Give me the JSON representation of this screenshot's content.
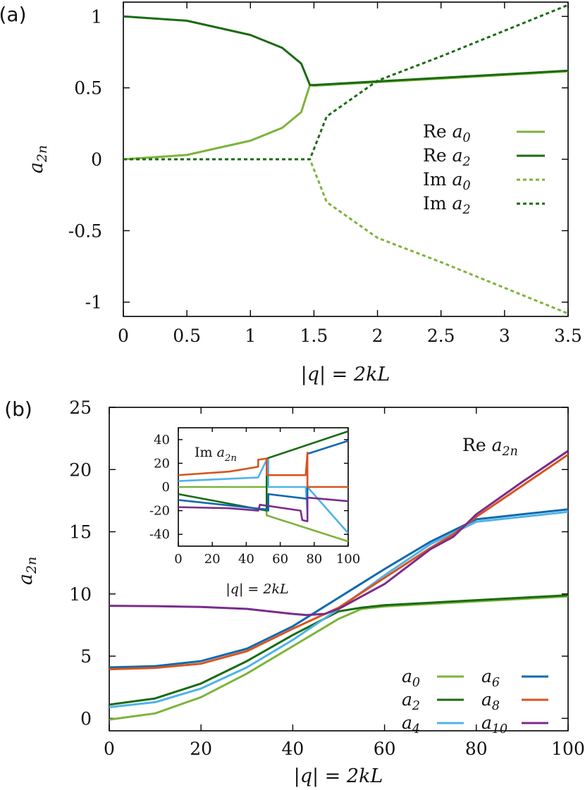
{
  "chart_data": [
    {
      "type": "line",
      "panel_label": "(a)",
      "xlabel": "|q| = 2kL",
      "ylabel": "a_2n",
      "xlim": [
        0,
        3.5
      ],
      "ylim": [
        -1.1,
        1.1
      ],
      "xticks": [
        0,
        0.5,
        1,
        1.5,
        2,
        2.5,
        3,
        3.5
      ],
      "xtick_labels": [
        "0",
        "0.5",
        "1",
        "1.5",
        "2",
        "2.5",
        "3",
        "3.5"
      ],
      "yticks": [
        1,
        0.5,
        0,
        -0.5,
        -1
      ],
      "ytick_labels": [
        "1",
        "0.5",
        "0",
        "-0.5",
        "-1"
      ],
      "legend_position": "right",
      "series": [
        {
          "name": "Re a0",
          "style": "solid",
          "color": "#7db33a",
          "x": [
            0,
            0.5,
            1.0,
            1.25,
            1.4,
            1.468,
            1.5,
            2.0,
            2.5,
            3.0,
            3.5
          ],
          "y": [
            0,
            0.03,
            0.13,
            0.22,
            0.33,
            0.52,
            0.515,
            0.54,
            0.565,
            0.59,
            0.615
          ]
        },
        {
          "name": "Re a2",
          "style": "solid",
          "color": "#1a6b12",
          "x": [
            0,
            0.5,
            1.0,
            1.25,
            1.4,
            1.468,
            1.5,
            2.0,
            2.5,
            3.0,
            3.5
          ],
          "y": [
            1.0,
            0.97,
            0.87,
            0.78,
            0.67,
            0.52,
            0.52,
            0.545,
            0.57,
            0.595,
            0.62
          ]
        },
        {
          "name": "Im a0",
          "style": "dashed",
          "color": "#7db33a",
          "x": [
            0,
            1.0,
            1.468,
            1.6,
            2.0,
            2.5,
            3.0,
            3.5
          ],
          "y": [
            0,
            0,
            0,
            -0.3,
            -0.55,
            -0.72,
            -0.9,
            -1.08
          ]
        },
        {
          "name": "Im a2",
          "style": "dashed",
          "color": "#1a6b12",
          "x": [
            0,
            1.0,
            1.468,
            1.6,
            2.0,
            2.5,
            3.0,
            3.5
          ],
          "y": [
            0,
            0,
            0,
            0.3,
            0.55,
            0.72,
            0.9,
            1.08
          ]
        }
      ]
    },
    {
      "type": "line",
      "panel_label": "(b)",
      "annotation": "Re a_2n",
      "xlabel": "|q| = 2kL",
      "ylabel": "a_2n",
      "xlim": [
        0,
        100
      ],
      "ylim": [
        -1,
        25
      ],
      "xticks": [
        0,
        20,
        40,
        60,
        80,
        100
      ],
      "xtick_labels": [
        "0",
        "20",
        "40",
        "60",
        "80",
        "100"
      ],
      "yticks": [
        0,
        5,
        10,
        15,
        20,
        25
      ],
      "ytick_labels": [
        "0",
        "5",
        "10",
        "15",
        "20",
        "25"
      ],
      "legend_position": "bottom-right",
      "series": [
        {
          "name": "a0",
          "color": "#7db33a",
          "x": [
            0,
            10,
            20,
            30,
            40,
            50,
            55,
            60,
            70,
            80,
            90,
            100
          ],
          "y": [
            -0.1,
            0.4,
            1.7,
            3.6,
            5.8,
            8.0,
            8.8,
            9.0,
            9.2,
            9.4,
            9.6,
            9.8
          ]
        },
        {
          "name": "a2",
          "color": "#1a6b12",
          "x": [
            0,
            10,
            20,
            30,
            40,
            50,
            55,
            60,
            70,
            80,
            90,
            100
          ],
          "y": [
            1.1,
            1.6,
            2.8,
            4.6,
            6.7,
            8.6,
            8.9,
            9.1,
            9.3,
            9.5,
            9.7,
            9.9
          ]
        },
        {
          "name": "a4",
          "color": "#4fb3e8",
          "x": [
            0,
            10,
            20,
            30,
            40,
            50,
            60,
            70,
            80,
            85,
            90,
            100
          ],
          "y": [
            0.9,
            1.3,
            2.4,
            4.1,
            6.3,
            8.8,
            11.5,
            14.0,
            15.8,
            16.0,
            16.2,
            16.6
          ]
        },
        {
          "name": "a6",
          "color": "#0f69b0",
          "x": [
            0,
            10,
            20,
            30,
            40,
            50,
            60,
            70,
            80,
            85,
            90,
            100
          ],
          "y": [
            4.1,
            4.2,
            4.6,
            5.6,
            7.4,
            9.7,
            12.0,
            14.2,
            16.0,
            16.2,
            16.4,
            16.8
          ]
        },
        {
          "name": "a8",
          "color": "#d9531e",
          "x": [
            0,
            10,
            20,
            30,
            40,
            47,
            50,
            60,
            70,
            75,
            80,
            90,
            100
          ],
          "y": [
            3.95,
            4.05,
            4.4,
            5.4,
            7.2,
            8.4,
            8.9,
            11.3,
            13.7,
            14.8,
            16.2,
            18.7,
            21.2
          ]
        },
        {
          "name": "a10",
          "color": "#7a2b8c",
          "x": [
            0,
            10,
            20,
            30,
            40,
            43,
            47,
            50,
            60,
            70,
            75,
            80,
            90,
            100
          ],
          "y": [
            9.05,
            9.02,
            8.95,
            8.8,
            8.4,
            8.3,
            8.4,
            8.8,
            10.8,
            13.6,
            14.6,
            16.4,
            19.0,
            21.5
          ]
        }
      ]
    },
    {
      "type": "line",
      "inset": true,
      "annotation": "Im a_2n",
      "xlabel": "|q| = 2kL",
      "xlim": [
        0,
        100
      ],
      "ylim": [
        -50,
        50
      ],
      "xticks": [
        0,
        20,
        40,
        60,
        80,
        100
      ],
      "xtick_labels": [
        "0",
        "20",
        "40",
        "60",
        "80",
        "100"
      ],
      "yticks": [
        40,
        20,
        0,
        -20,
        -40
      ],
      "ytick_labels": [
        "40",
        "20",
        "0",
        "-20",
        "-40"
      ],
      "series": [
        {
          "name": "a0",
          "color": "#7db33a",
          "x": [
            0,
            52,
            52,
            100
          ],
          "y": [
            0,
            0,
            -24,
            -46
          ]
        },
        {
          "name": "a2",
          "color": "#1a6b12",
          "x": [
            0,
            52,
            52,
            100
          ],
          "y": [
            -6,
            -20,
            24,
            47
          ]
        },
        {
          "name": "a4",
          "color": "#4fb3e8",
          "x": [
            0,
            47,
            52,
            53,
            53,
            75,
            76,
            76,
            100
          ],
          "y": [
            5,
            8,
            23,
            23,
            0,
            0,
            -23,
            0,
            -39
          ]
        },
        {
          "name": "a6",
          "color": "#0f69b0",
          "x": [
            0,
            52,
            53,
            53,
            76,
            76,
            100
          ],
          "y": [
            -11,
            -19,
            -20,
            -6,
            -10,
            28,
            39
          ]
        },
        {
          "name": "a8",
          "color": "#d9531e",
          "x": [
            0,
            30,
            47,
            47,
            52,
            52,
            75,
            76,
            76,
            100
          ],
          "y": [
            10,
            13,
            17,
            23,
            24,
            10,
            10,
            29,
            0,
            0
          ]
        },
        {
          "name": "a10",
          "color": "#7a2b8c",
          "x": [
            0,
            30,
            47,
            48,
            72,
            73,
            76,
            76,
            100
          ],
          "y": [
            -17,
            -18,
            -20,
            -15,
            -20,
            -28,
            -29,
            -9,
            -12
          ]
        }
      ]
    }
  ]
}
